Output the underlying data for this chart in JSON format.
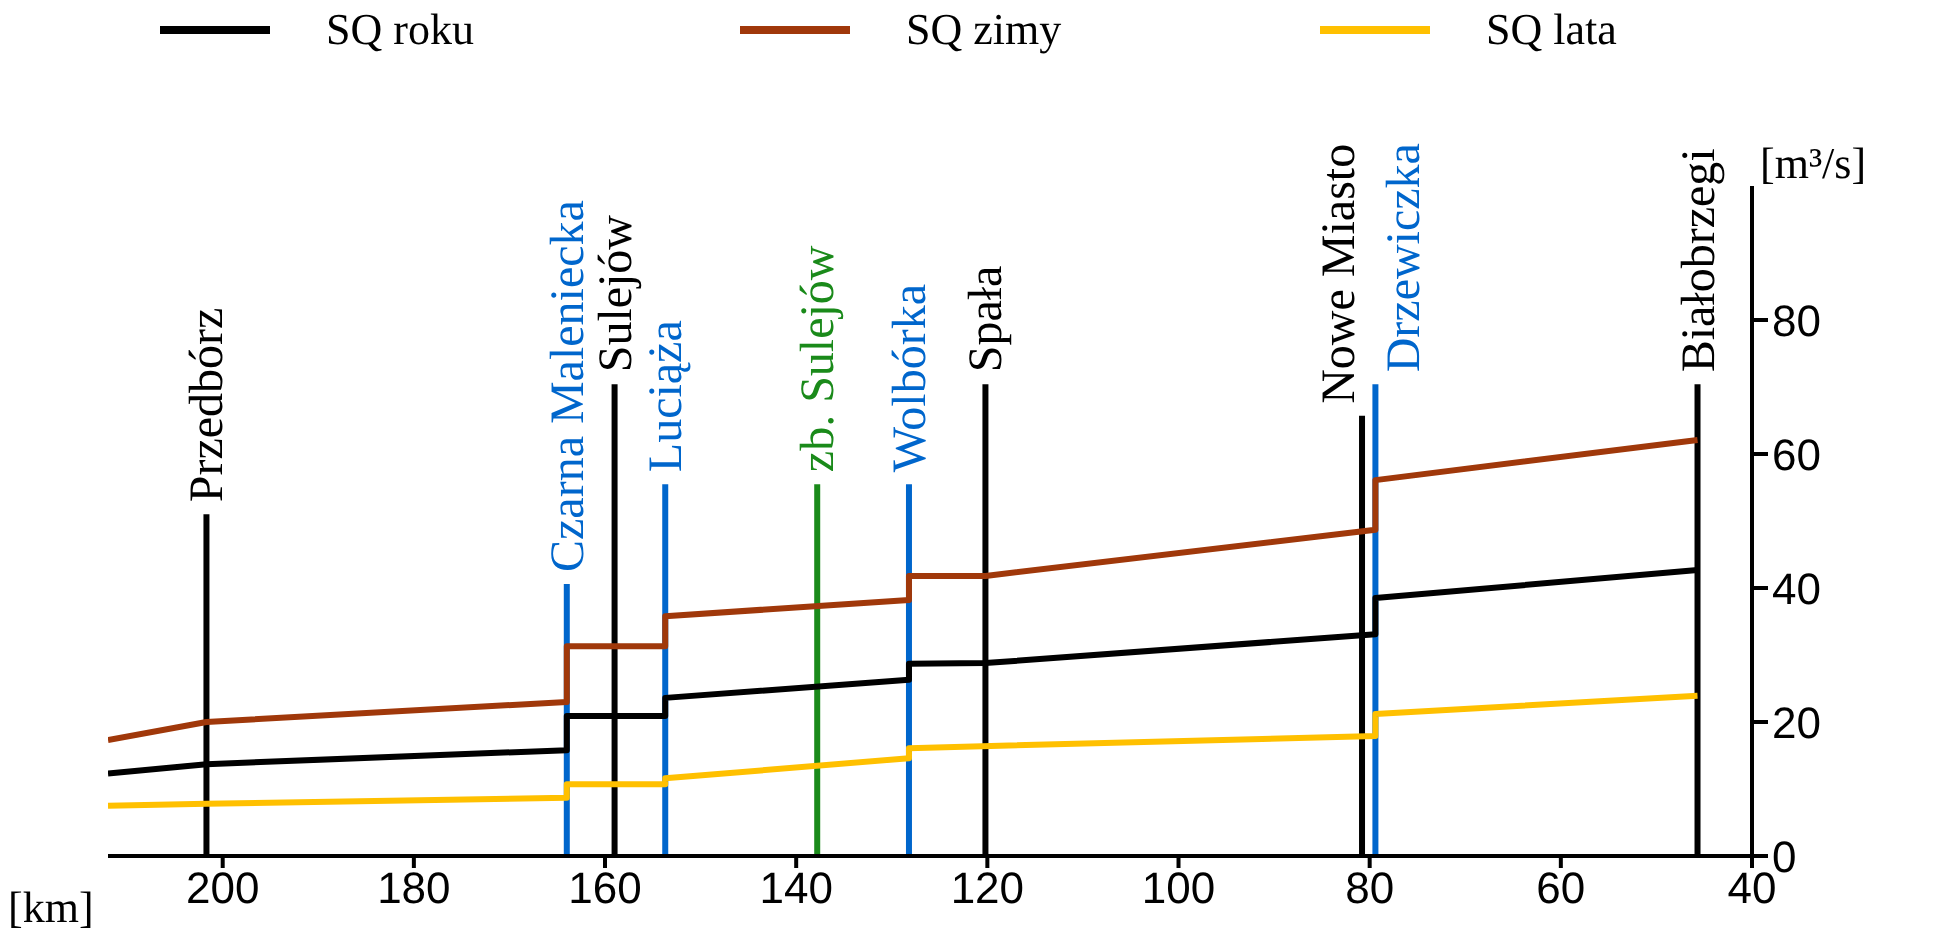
{
  "chart_data": {
    "type": "line",
    "xlabel": "[km]",
    "ylabel": "[m³/s]",
    "xlim": [
      212,
      40
    ],
    "xticks": [
      200,
      180,
      160,
      140,
      120,
      100,
      80,
      60,
      40
    ],
    "ylim": [
      0,
      100
    ],
    "yticks": [
      0,
      20,
      40,
      60,
      80
    ],
    "legend": "top",
    "grid": false,
    "marker": "none",
    "line_style": "solid",
    "series": [
      {
        "name": "SQ roku",
        "color": "#000000",
        "x": [
          212,
          201.7,
          164,
          164,
          153.7,
          153.7,
          128.2,
          128.2,
          120.2,
          79.4,
          79.4,
          45.7
        ],
        "values": [
          12.3,
          13.7,
          15.8,
          20.9,
          20.9,
          23.6,
          26.3,
          28.7,
          28.8,
          33.1,
          38.5,
          42.7
        ]
      },
      {
        "name": "SQ zimy",
        "color": "#a0380a",
        "x": [
          212,
          201.7,
          164,
          164,
          153.7,
          153.7,
          128.2,
          128.2,
          120.2,
          79.4,
          79.4,
          45.7
        ],
        "values": [
          17.3,
          20.0,
          23.0,
          31.3,
          31.3,
          35.8,
          38.2,
          41.8,
          41.8,
          48.7,
          56.1,
          62.1
        ]
      },
      {
        "name": "SQ lata",
        "color": "#ffc000",
        "x": [
          212,
          201.7,
          164,
          164,
          153.7,
          153.7,
          128.2,
          128.2,
          79.4,
          79.4,
          45.7
        ],
        "values": [
          7.5,
          7.8,
          8.7,
          10.7,
          10.7,
          11.6,
          14.6,
          16.1,
          17.9,
          21.2,
          23.9
        ]
      }
    ],
    "ref_lines": [
      {
        "axis": "x",
        "value": 201.7,
        "label": "Przedbórz",
        "color": "#000000"
      },
      {
        "axis": "x",
        "value": 164,
        "label": "Czarna Maleniecka",
        "color": "#0066cc"
      },
      {
        "axis": "x",
        "value": 159,
        "label": "Sulejów",
        "color": "#000000"
      },
      {
        "axis": "x",
        "value": 153.7,
        "label": "Luciąża",
        "color": "#0066cc"
      },
      {
        "axis": "x",
        "value": 137.8,
        "label": "zb. Sulejów",
        "color": "#1a8a1a"
      },
      {
        "axis": "x",
        "value": 128.2,
        "label": "Wolbórka",
        "color": "#0066cc"
      },
      {
        "axis": "x",
        "value": 120.2,
        "label": "Spała",
        "color": "#000000"
      },
      {
        "axis": "x",
        "value": 80.8,
        "label": "Nowe Miasto",
        "color": "#000000"
      },
      {
        "axis": "x",
        "value": 79.4,
        "label": "Drzewiczka",
        "color": "#0066cc"
      },
      {
        "axis": "x",
        "value": 45.7,
        "label": "Białobrzegi",
        "color": "#000000"
      }
    ]
  }
}
